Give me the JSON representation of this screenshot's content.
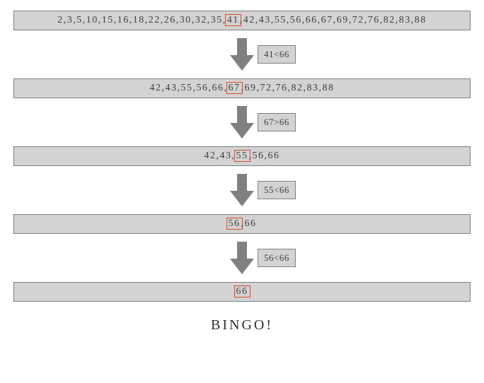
{
  "diagram": {
    "type": "flowchart",
    "background_color": "#ffffff",
    "box_bg": "#d3d3d3",
    "box_border": "#808080",
    "highlight_color": "#d94c2a",
    "arrow_color": "#808080",
    "text_color": "#404040",
    "font_size_step": 14,
    "font_size_compare": 13,
    "font_size_bingo": 20
  },
  "steps": [
    {
      "values": [
        2,
        3,
        5,
        10,
        15,
        16,
        18,
        22,
        26,
        30,
        32,
        35,
        41,
        42,
        43,
        55,
        56,
        66,
        67,
        69,
        72,
        76,
        82,
        83,
        88
      ],
      "highlight_index": 12,
      "comparison": "41<66"
    },
    {
      "values": [
        42,
        43,
        55,
        56,
        66,
        67,
        69,
        72,
        76,
        82,
        83,
        88
      ],
      "highlight_index": 5,
      "comparison": "67>66"
    },
    {
      "values": [
        42,
        43,
        55,
        56,
        66
      ],
      "highlight_index": 2,
      "comparison": "55<66"
    },
    {
      "values": [
        56,
        66
      ],
      "highlight_index": 0,
      "comparison": "56<66"
    },
    {
      "values": [
        66
      ],
      "highlight_index": 0,
      "comparison": null
    }
  ],
  "result_label": "BINGO!"
}
